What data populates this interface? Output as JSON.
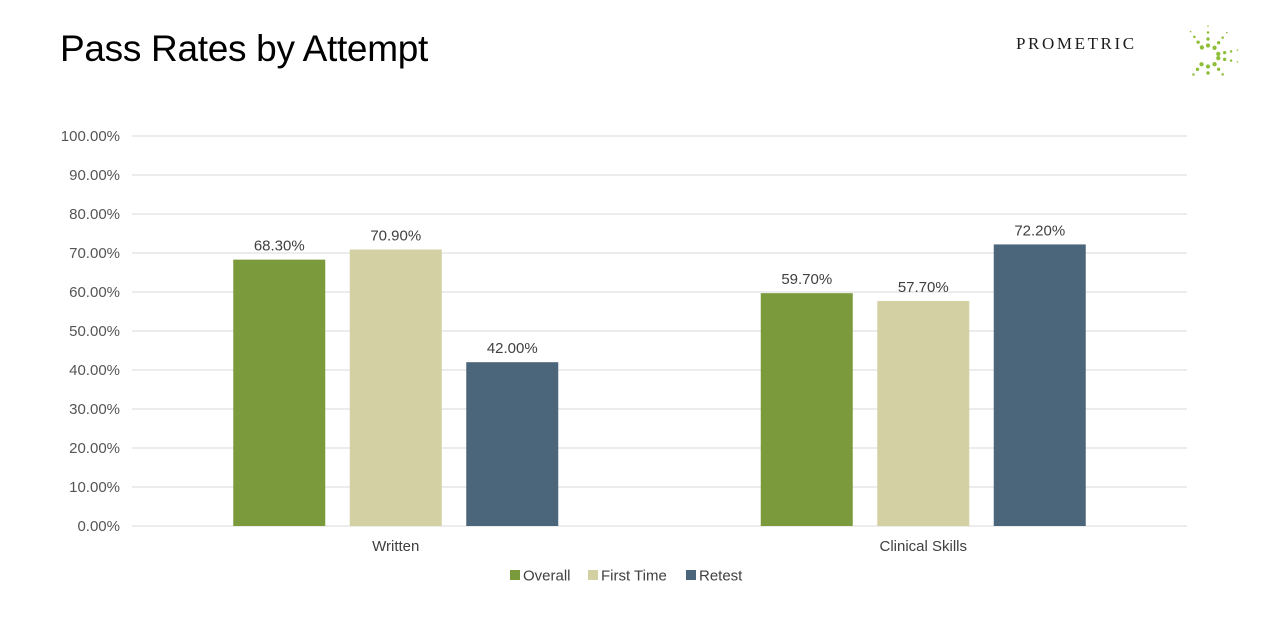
{
  "page": {
    "title": "Pass Rates by Attempt",
    "logo_text": "PROMETRIC"
  },
  "colors": {
    "overall": "#7a9a3c",
    "first_time": "#d3d0a4",
    "retest": "#4b667b",
    "grid": "#d9d9d9",
    "logo_dots": "#8fbf3a"
  },
  "chart_data": {
    "type": "bar",
    "title": "Pass Rates by Attempt",
    "categories": [
      "Written",
      "Clinical Skills"
    ],
    "series": [
      {
        "name": "Overall",
        "values": [
          68.3,
          59.7
        ],
        "labels": [
          "68.30%",
          "59.70%"
        ]
      },
      {
        "name": "First Time",
        "values": [
          70.9,
          57.7
        ],
        "labels": [
          "70.90%",
          "57.70%"
        ]
      },
      {
        "name": "Retest",
        "values": [
          42.0,
          72.2
        ],
        "labels": [
          "42.00%",
          "72.20%"
        ]
      }
    ],
    "ylim": [
      0,
      100
    ],
    "y_ticks": [
      "0.00%",
      "10.00%",
      "20.00%",
      "30.00%",
      "40.00%",
      "50.00%",
      "60.00%",
      "70.00%",
      "80.00%",
      "90.00%",
      "100.00%"
    ],
    "grid": true,
    "legend": "bottom"
  }
}
